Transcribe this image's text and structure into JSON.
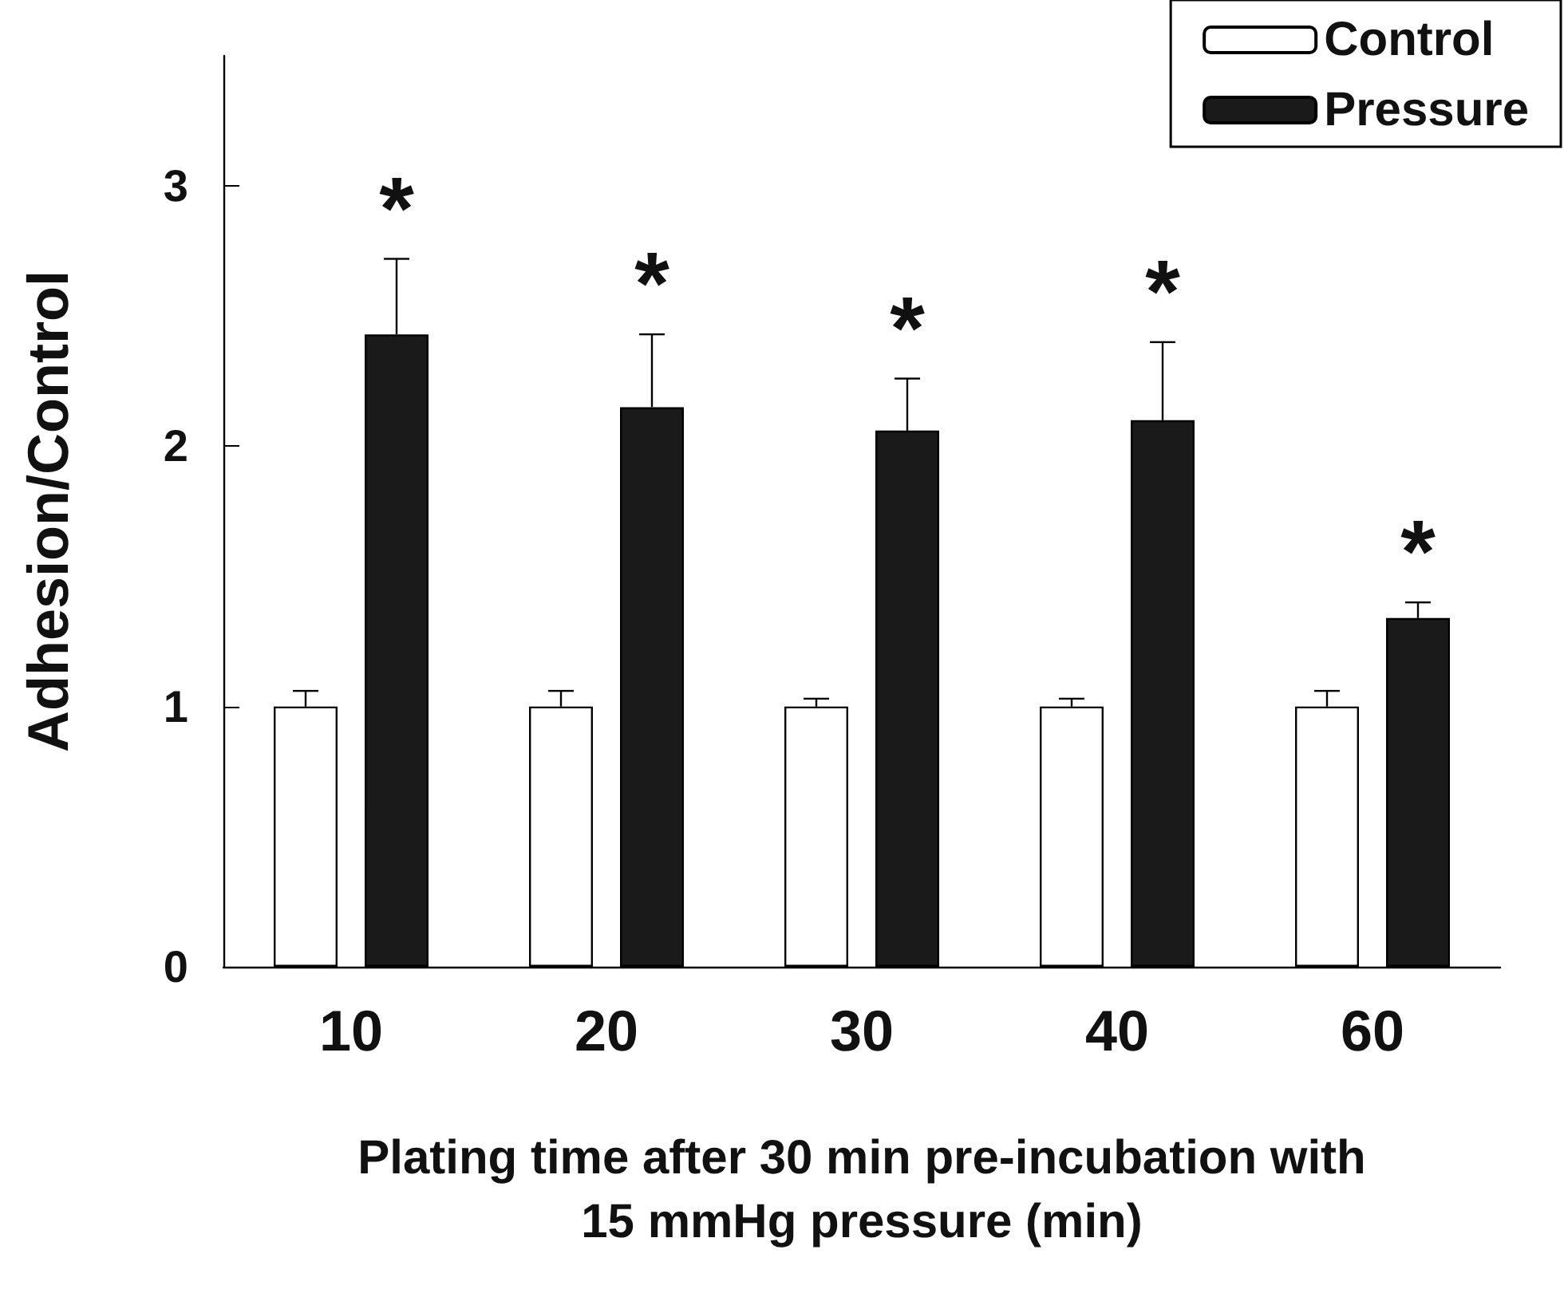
{
  "chart_data": {
    "type": "bar",
    "categories": [
      "10",
      "20",
      "30",
      "40",
      "60"
    ],
    "xlabel": "Plating time after 30 min pre-incubation with 15 mmHg pressure (min)",
    "ylabel": "Adhesion/Control",
    "ylim": [
      0,
      3.5
    ],
    "yticks": [
      0,
      1,
      2,
      3
    ],
    "grid": false,
    "legend": "top right",
    "series": [
      {
        "name": "Control",
        "color": "#ffffff",
        "values": [
          1.0,
          1.0,
          1.0,
          1.0,
          1.0
        ],
        "errors": [
          [
            1.0,
            1.06
          ],
          [
            1.0,
            1.06
          ],
          [
            1.0,
            1.03
          ],
          [
            1.0,
            1.03
          ],
          [
            1.0,
            1.06
          ]
        ]
      },
      {
        "name": "Pressure",
        "color": "#1a1a1a",
        "values": [
          2.43,
          2.15,
          2.06,
          2.1,
          1.34
        ],
        "errors": [
          [
            2.43,
            2.72
          ],
          [
            2.15,
            2.43
          ],
          [
            2.06,
            2.26
          ],
          [
            2.1,
            2.4
          ],
          [
            1.34,
            1.4
          ]
        ]
      }
    ],
    "annotations": [
      "*",
      "*",
      "*",
      "*",
      "*"
    ]
  }
}
